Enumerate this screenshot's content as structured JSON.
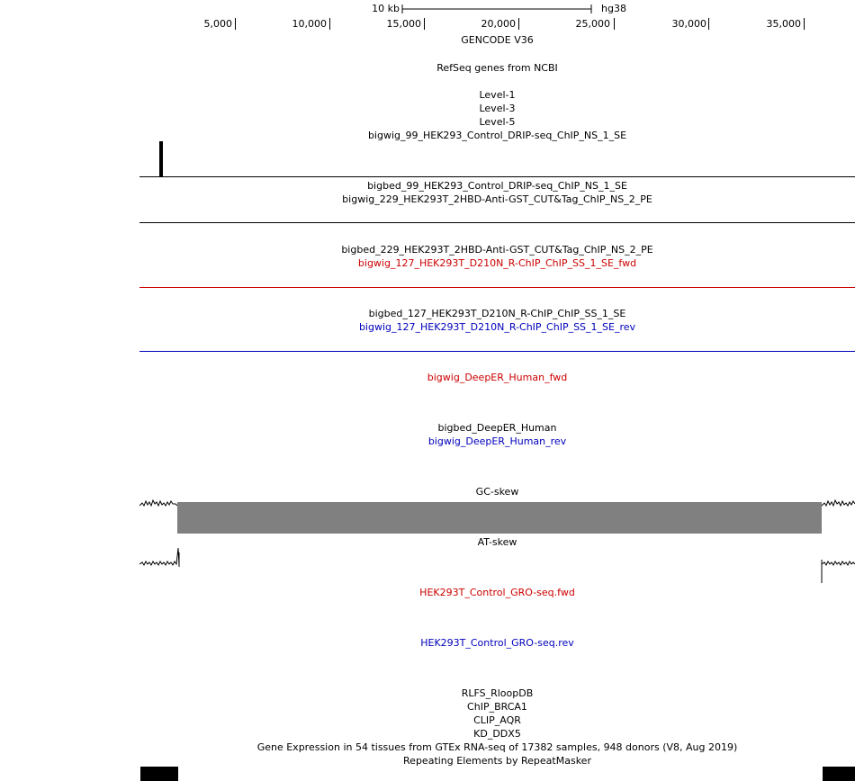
{
  "ruler": {
    "scale_label": "10 kb",
    "assembly": "hg38",
    "ticks": [
      "5,000",
      "10,000",
      "15,000",
      "20,000",
      "25,000",
      "30,000",
      "35,000"
    ]
  },
  "tracks": {
    "gencode": "GENCODE V36",
    "refseq": "RefSeq genes from NCBI",
    "level1": "Level-1",
    "level3": "Level-3",
    "level5": "Level-5",
    "t1": "bigwig_99_HEK293_Control_DRIP-seq_ChIP_NS_1_SE",
    "t2": "bigbed_99_HEK293_Control_DRIP-seq_ChIP_NS_1_SE",
    "t3": "bigwig_229_HEK293T_2HBD-Anti-GST_CUT&Tag_ChIP_NS_2_PE",
    "t4": "bigbed_229_HEK293T_2HBD-Anti-GST_CUT&Tag_ChIP_NS_2_PE",
    "t5": "bigwig_127_HEK293T_D210N_R-ChIP_ChIP_SS_1_SE_fwd",
    "t6": "bigbed_127_HEK293T_D210N_R-ChIP_ChIP_SS_1_SE",
    "t7": "bigwig_127_HEK293T_D210N_R-ChIP_ChIP_SS_1_SE_rev",
    "t8": "bigwig_DeepER_Human_fwd",
    "t9": "bigbed_DeepER_Human",
    "t10": "bigwig_DeepER_Human_rev",
    "gcskew": "GC-skew",
    "atskew": "AT-skew",
    "gro_fwd": "HEK293T_Control_GRO-seq.fwd",
    "gro_rev": "HEK293T_Control_GRO-seq.rev",
    "rlfs": "RLFS_RloopDB",
    "brca1": "ChIP_BRCA1",
    "aqr": "CLIP_AQR",
    "ddx5": "KD_DDX5",
    "gtex": "Gene Expression in 54 tissues from GTEx RNA-seq of 17382 samples, 948 donors (V8, Aug 2019)",
    "rmsk": "Repeating Elements by RepeatMasker"
  },
  "colors": {
    "fwd": "#cc0000",
    "rev": "#0000bb",
    "skew_fill": "#808080"
  }
}
